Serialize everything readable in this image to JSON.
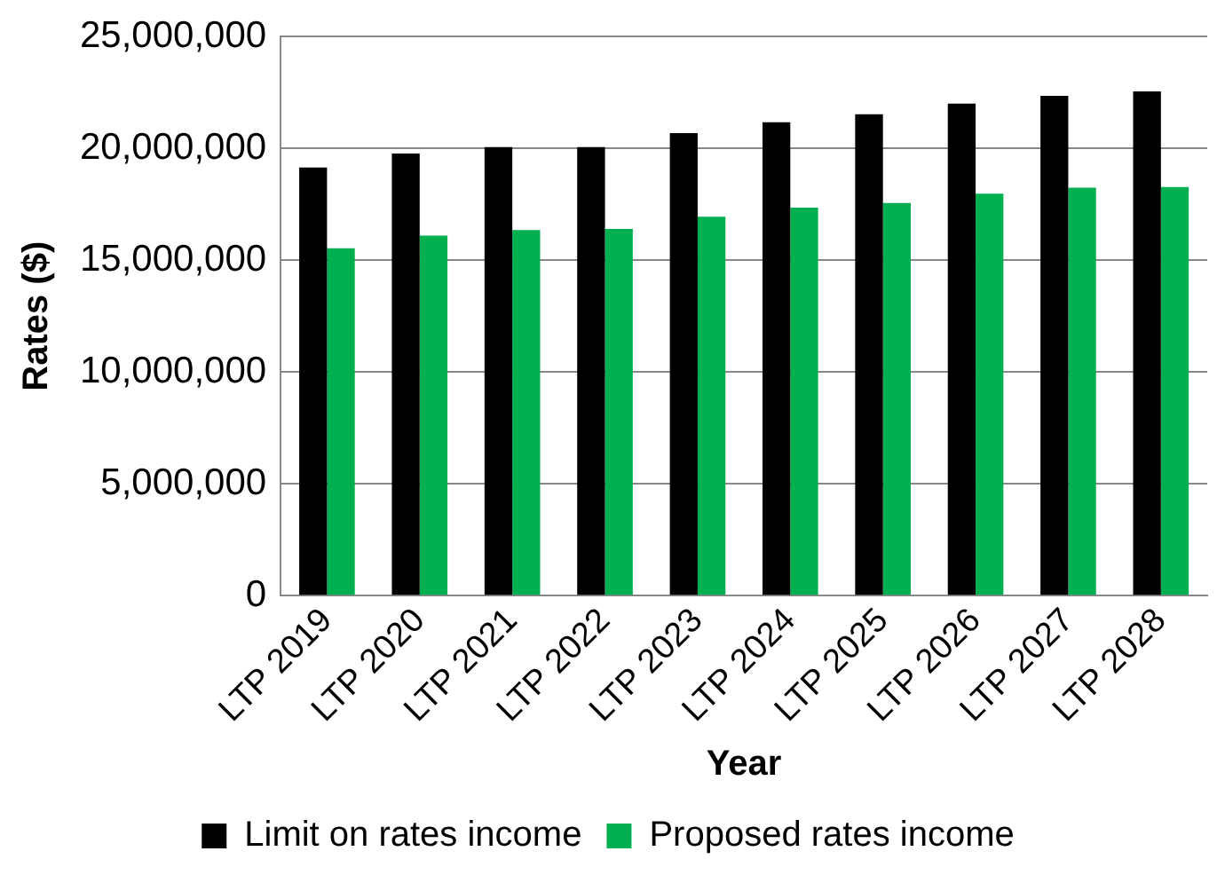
{
  "chart_data": {
    "type": "bar",
    "xlabel": "Year",
    "ylabel": "Rates ($)",
    "categories": [
      "LTP 2019",
      "LTP 2020",
      "LTP 2021",
      "LTP 2022",
      "LTP 2023",
      "LTP 2024",
      "LTP 2025",
      "LTP 2026",
      "LTP 2027",
      "LTP 2028"
    ],
    "series": [
      {
        "name": "Limit on rates income",
        "color": "#000000",
        "values": [
          19150000,
          19770000,
          20060000,
          20060000,
          20680000,
          21170000,
          21530000,
          22000000,
          22350000,
          22550000
        ]
      },
      {
        "name": "Proposed rates income",
        "color": "#00b050",
        "values": [
          15530000,
          16100000,
          16350000,
          16400000,
          16940000,
          17350000,
          17560000,
          17970000,
          18240000,
          18270000
        ]
      }
    ],
    "ylim": [
      0,
      25000000
    ],
    "yticks": [
      {
        "value": 0,
        "label": "0"
      },
      {
        "value": 5000000,
        "label": "5,000,000"
      },
      {
        "value": 10000000,
        "label": "10,000,000"
      },
      {
        "value": 15000000,
        "label": "15,000,000"
      },
      {
        "value": 20000000,
        "label": "20,000,000"
      },
      {
        "value": 25000000,
        "label": "25,000,000"
      }
    ],
    "grid": "y",
    "legend": "bottom"
  }
}
